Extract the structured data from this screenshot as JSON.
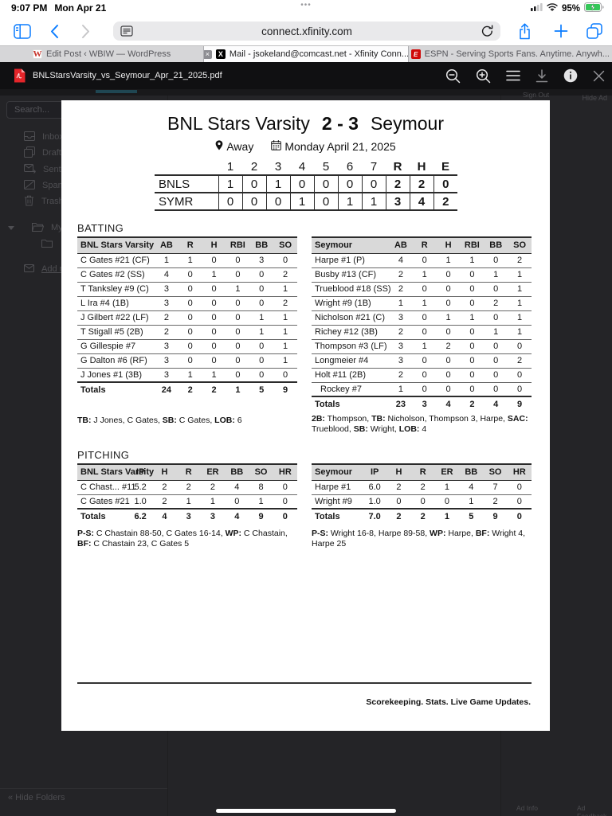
{
  "status_bar": {
    "time": "9:07 PM",
    "date": "Mon Apr 21",
    "dots": "•••",
    "battery_percent": "95%"
  },
  "browser": {
    "url": "connect.xfinity.com"
  },
  "tabs": [
    {
      "label": "Edit Post ‹ WBIW — WordPress",
      "favicon": "W"
    },
    {
      "label": "Mail - jsokeland@comcast.net - Xfinity Conn...",
      "favicon": "X",
      "close": "×"
    },
    {
      "label": "ESPN - Serving Sports Fans. Anytime. Anywh...",
      "favicon": "E"
    }
  ],
  "pdf_viewer": {
    "filename": "BNLStarsVarsity_vs_Seymour_Apr_21_2025.pdf"
  },
  "webmail_bg": {
    "search_placeholder": "Search...",
    "folders": [
      "Inbox",
      "Drafts",
      "Sent",
      "Spam",
      "Trash"
    ],
    "my_folders_label": "My fol",
    "add_mailbox_label": "Add m",
    "hide_folders": "« Hide Folders",
    "hide_ad": "Hide Ad",
    "sign_out": "Sign Out",
    "ad_info": "Ad Info",
    "ad_feedback": "Ad Feedback"
  },
  "game": {
    "team_home": "BNL Stars Varsity",
    "score": "2 - 3",
    "team_away": "Seymour",
    "location_label": "Away",
    "date_label": "Monday April 21, 2025",
    "batting_label": "BATTING",
    "pitching_label": "PITCHING",
    "footer": "Scorekeeping. Stats. Live Game Updates.",
    "linescore": {
      "innings_headers": [
        "1",
        "2",
        "3",
        "4",
        "5",
        "6",
        "7"
      ],
      "rhe_headers": [
        "R",
        "H",
        "E"
      ],
      "rows": [
        {
          "team": "BNLS",
          "innings": [
            "1",
            "0",
            "1",
            "0",
            "0",
            "0",
            "0"
          ],
          "rhe": [
            "2",
            "2",
            "0"
          ]
        },
        {
          "team": "SYMR",
          "innings": [
            "0",
            "0",
            "0",
            "1",
            "0",
            "1",
            "1"
          ],
          "rhe": [
            "3",
            "4",
            "2"
          ]
        }
      ]
    },
    "batting_left": {
      "team": "BNL Stars Varsity",
      "columns": [
        "AB",
        "R",
        "H",
        "RBI",
        "BB",
        "SO"
      ],
      "players": [
        {
          "name": "C Gates #21 (CF)",
          "stats": [
            "1",
            "1",
            "0",
            "0",
            "3",
            "0"
          ]
        },
        {
          "name": "C Gates #2 (SS)",
          "stats": [
            "4",
            "0",
            "1",
            "0",
            "0",
            "2"
          ]
        },
        {
          "name": "T Tanksley #9 (C)",
          "stats": [
            "3",
            "0",
            "0",
            "1",
            "0",
            "1"
          ]
        },
        {
          "name": "L Ira #4 (1B)",
          "stats": [
            "3",
            "0",
            "0",
            "0",
            "0",
            "2"
          ]
        },
        {
          "name": "J Gilbert #22 (LF)",
          "stats": [
            "2",
            "0",
            "0",
            "0",
            "1",
            "1"
          ]
        },
        {
          "name": "T Stigall #5 (2B)",
          "stats": [
            "2",
            "0",
            "0",
            "0",
            "1",
            "1"
          ]
        },
        {
          "name": "G Gillespie #7",
          "stats": [
            "3",
            "0",
            "0",
            "0",
            "0",
            "1"
          ]
        },
        {
          "name": "G Dalton #6 (RF)",
          "stats": [
            "3",
            "0",
            "0",
            "0",
            "0",
            "1"
          ]
        },
        {
          "name": "J Jones #1 (3B)",
          "stats": [
            "3",
            "1",
            "1",
            "0",
            "0",
            "0"
          ]
        }
      ],
      "totals_label": "Totals",
      "totals": [
        "24",
        "2",
        "2",
        "1",
        "5",
        "9"
      ],
      "note": [
        {
          "b": "TB:"
        },
        {
          "t": " J Jones, C Gates, "
        },
        {
          "b": "SB:"
        },
        {
          "t": " C Gates, "
        },
        {
          "b": "LOB:"
        },
        {
          "t": " 6"
        }
      ]
    },
    "batting_right": {
      "team": "Seymour",
      "columns": [
        "AB",
        "R",
        "H",
        "RBI",
        "BB",
        "SO"
      ],
      "players": [
        {
          "name": "Harpe #1 (P)",
          "stats": [
            "4",
            "0",
            "1",
            "1",
            "0",
            "2"
          ]
        },
        {
          "name": "Busby #13 (CF)",
          "stats": [
            "2",
            "1",
            "0",
            "0",
            "1",
            "1"
          ]
        },
        {
          "name": "Trueblood #18 (SS)",
          "stats": [
            "2",
            "0",
            "0",
            "0",
            "0",
            "1"
          ]
        },
        {
          "name": "Wright #9 (1B)",
          "stats": [
            "1",
            "1",
            "0",
            "0",
            "2",
            "1"
          ]
        },
        {
          "name": "Nicholson #21 (C)",
          "stats": [
            "3",
            "0",
            "1",
            "1",
            "0",
            "1"
          ]
        },
        {
          "name": "Richey #12 (3B)",
          "stats": [
            "2",
            "0",
            "0",
            "0",
            "1",
            "1"
          ]
        },
        {
          "name": "Thompson #3 (LF)",
          "stats": [
            "3",
            "1",
            "2",
            "0",
            "0",
            "0"
          ]
        },
        {
          "name": "Longmeier #4",
          "stats": [
            "3",
            "0",
            "0",
            "0",
            "0",
            "2"
          ]
        },
        {
          "name": "Holt #11 (2B)",
          "stats": [
            "2",
            "0",
            "0",
            "0",
            "0",
            "0"
          ]
        },
        {
          "name": "Rockey #7",
          "indent": true,
          "stats": [
            "1",
            "0",
            "0",
            "0",
            "0",
            "0"
          ]
        }
      ],
      "totals_label": "Totals",
      "totals": [
        "23",
        "3",
        "4",
        "2",
        "4",
        "9"
      ],
      "note": [
        {
          "b": "2B:"
        },
        {
          "t": " Thompson, "
        },
        {
          "b": "TB:"
        },
        {
          "t": " Nicholson, Thompson 3, Harpe, "
        },
        {
          "b": "SAC:"
        },
        {
          "t": " Trueblood, "
        },
        {
          "b": "SB:"
        },
        {
          "t": " Wright, "
        },
        {
          "b": "LOB:"
        },
        {
          "t": " 4"
        }
      ]
    },
    "pitching_left": {
      "team": "BNL Stars Varsity",
      "columns": [
        "IP",
        "H",
        "R",
        "ER",
        "BB",
        "SO",
        "HR"
      ],
      "players": [
        {
          "name": "C Chast... #11",
          "stats": [
            "5.2",
            "2",
            "2",
            "2",
            "4",
            "8",
            "0"
          ]
        },
        {
          "name": "C Gates #21",
          "stats": [
            "1.0",
            "2",
            "1",
            "1",
            "0",
            "1",
            "0"
          ]
        }
      ],
      "totals_label": "Totals",
      "totals": [
        "6.2",
        "4",
        "3",
        "3",
        "4",
        "9",
        "0"
      ],
      "note": [
        {
          "b": "P-S:"
        },
        {
          "t": " C Chastain 88-50, C Gates 16-14, "
        },
        {
          "b": "WP:"
        },
        {
          "t": " C Chastain, "
        },
        {
          "b": "BF:"
        },
        {
          "t": " C Chastain 23, C Gates 5"
        }
      ]
    },
    "pitching_right": {
      "team": "Seymour",
      "columns": [
        "IP",
        "H",
        "R",
        "ER",
        "BB",
        "SO",
        "HR"
      ],
      "players": [
        {
          "name": "Harpe #1",
          "stats": [
            "6.0",
            "2",
            "2",
            "1",
            "4",
            "7",
            "0"
          ]
        },
        {
          "name": "Wright #9",
          "stats": [
            "1.0",
            "0",
            "0",
            "0",
            "1",
            "2",
            "0"
          ]
        }
      ],
      "totals_label": "Totals",
      "totals": [
        "7.0",
        "2",
        "2",
        "1",
        "5",
        "9",
        "0"
      ],
      "note": [
        {
          "b": "P-S:"
        },
        {
          "t": " Wright 16-8, Harpe 89-58, "
        },
        {
          "b": "WP:"
        },
        {
          "t": " Harpe, "
        },
        {
          "b": "BF:"
        },
        {
          "t": " Wright 4, Harpe 25"
        }
      ]
    }
  }
}
